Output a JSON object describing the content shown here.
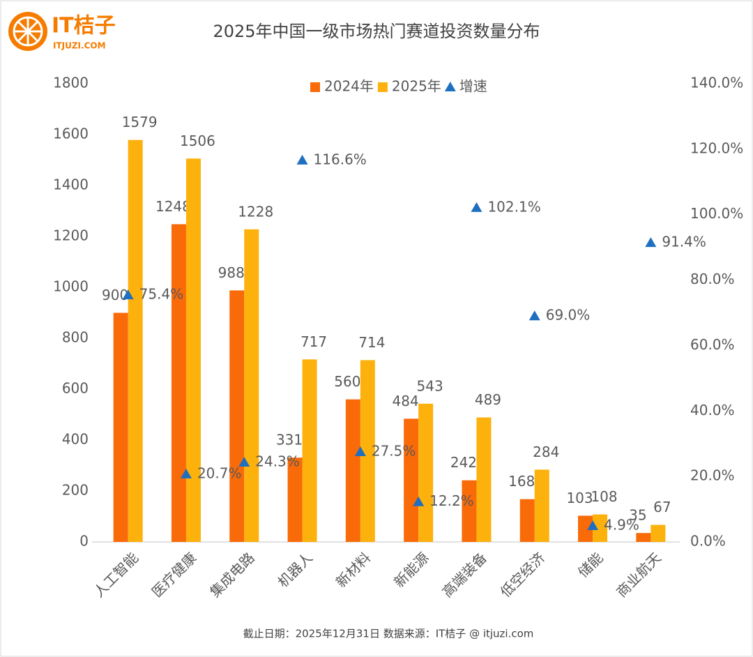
{
  "logo": {
    "name": "IT桔子",
    "url": "ITJUZI.COM"
  },
  "chart_data": {
    "type": "bar",
    "title": "2025年中国一级市场热门赛道投资数量分布",
    "note": "截止日期：2025年12月31日     数据来源：IT桔子 @ itjuzi.com",
    "categories": [
      "人工智能",
      "医疗健康",
      "集成电路",
      "机器人",
      "新材料",
      "新能源",
      "高端装备",
      "低空经济",
      "储能",
      "商业航天"
    ],
    "series": [
      {
        "name": "2024年",
        "color": "#f96a08",
        "values": [
          900,
          1248,
          988,
          331,
          560,
          484,
          242,
          168,
          103,
          35
        ]
      },
      {
        "name": "2025年",
        "color": "#fdb10c",
        "values": [
          1579,
          1506,
          1228,
          717,
          714,
          543,
          489,
          284,
          108,
          67
        ]
      },
      {
        "name": "增速",
        "type": "scatter",
        "axis": "y2",
        "color": "#1f6fc0",
        "values": [
          75.4,
          20.7,
          24.3,
          116.6,
          27.5,
          12.2,
          102.1,
          69.0,
          4.9,
          91.4
        ],
        "value_labels": [
          "75.4%",
          "20.7%",
          "24.3%",
          "116.6%",
          "27.5%",
          "12.2%",
          "102.1%",
          "69.0%",
          "4.9%",
          "91.4%"
        ]
      }
    ],
    "ylim": [
      0,
      1800
    ],
    "yticks": [
      0,
      200,
      400,
      600,
      800,
      1000,
      1200,
      1400,
      1600,
      1800
    ],
    "y2lim": [
      0,
      140
    ],
    "y2ticks": [
      {
        "value": 0,
        "label": "0.0%"
      },
      {
        "value": 20,
        "label": "20.0%"
      },
      {
        "value": 40,
        "label": "40.0%"
      },
      {
        "value": 60,
        "label": "60.0%"
      },
      {
        "value": 80,
        "label": "80.0%"
      },
      {
        "value": 100,
        "label": "100.0%"
      },
      {
        "value": 120,
        "label": "120.0%"
      },
      {
        "value": 140,
        "label": "140.0%"
      }
    ],
    "grid": false,
    "legend": "top"
  }
}
